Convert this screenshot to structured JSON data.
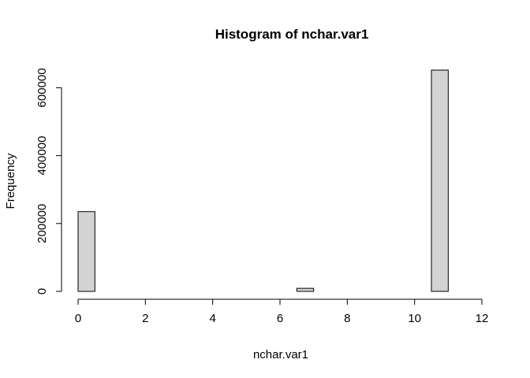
{
  "chart_data": {
    "type": "bar",
    "title": "Histogram of nchar.var1",
    "xlabel": "nchar.var1",
    "ylabel": "Frequency",
    "bin_width": 0.5,
    "bins": [
      {
        "start": 0.0,
        "end": 0.5,
        "count": 235000
      },
      {
        "start": 0.5,
        "end": 1.0,
        "count": 0
      },
      {
        "start": 1.0,
        "end": 1.5,
        "count": 0
      },
      {
        "start": 1.5,
        "end": 2.0,
        "count": 0
      },
      {
        "start": 2.0,
        "end": 2.5,
        "count": 0
      },
      {
        "start": 2.5,
        "end": 3.0,
        "count": 0
      },
      {
        "start": 3.0,
        "end": 3.5,
        "count": 0
      },
      {
        "start": 3.5,
        "end": 4.0,
        "count": 0
      },
      {
        "start": 4.0,
        "end": 4.5,
        "count": 0
      },
      {
        "start": 4.5,
        "end": 5.0,
        "count": 0
      },
      {
        "start": 5.0,
        "end": 5.5,
        "count": 0
      },
      {
        "start": 5.5,
        "end": 6.0,
        "count": 0
      },
      {
        "start": 6.0,
        "end": 6.5,
        "count": 0
      },
      {
        "start": 6.5,
        "end": 7.0,
        "count": 9000
      },
      {
        "start": 7.0,
        "end": 7.5,
        "count": 0
      },
      {
        "start": 7.5,
        "end": 8.0,
        "count": 0
      },
      {
        "start": 8.0,
        "end": 8.5,
        "count": 0
      },
      {
        "start": 8.5,
        "end": 9.0,
        "count": 0
      },
      {
        "start": 9.0,
        "end": 9.5,
        "count": 0
      },
      {
        "start": 9.5,
        "end": 10.0,
        "count": 0
      },
      {
        "start": 10.0,
        "end": 10.5,
        "count": 0
      },
      {
        "start": 10.5,
        "end": 11.0,
        "count": 652000
      },
      {
        "start": 11.0,
        "end": 11.5,
        "count": 0
      },
      {
        "start": 11.5,
        "end": 12.0,
        "count": 0
      }
    ],
    "xlim": [
      0,
      12
    ],
    "ylim": [
      0,
      652000
    ],
    "x_ticks": [
      "0",
      "2",
      "4",
      "6",
      "8",
      "10",
      "12"
    ],
    "x_tick_values": [
      0,
      2,
      4,
      6,
      8,
      10,
      12
    ],
    "y_ticks": [
      "0",
      "200000",
      "400000",
      "600000"
    ],
    "y_tick_values": [
      0,
      200000,
      400000,
      600000
    ],
    "grid": false,
    "legend": "none",
    "colors": {
      "bar_fill": "#d3d3d3",
      "bar_stroke": "#000000",
      "background": "#ffffff"
    }
  }
}
